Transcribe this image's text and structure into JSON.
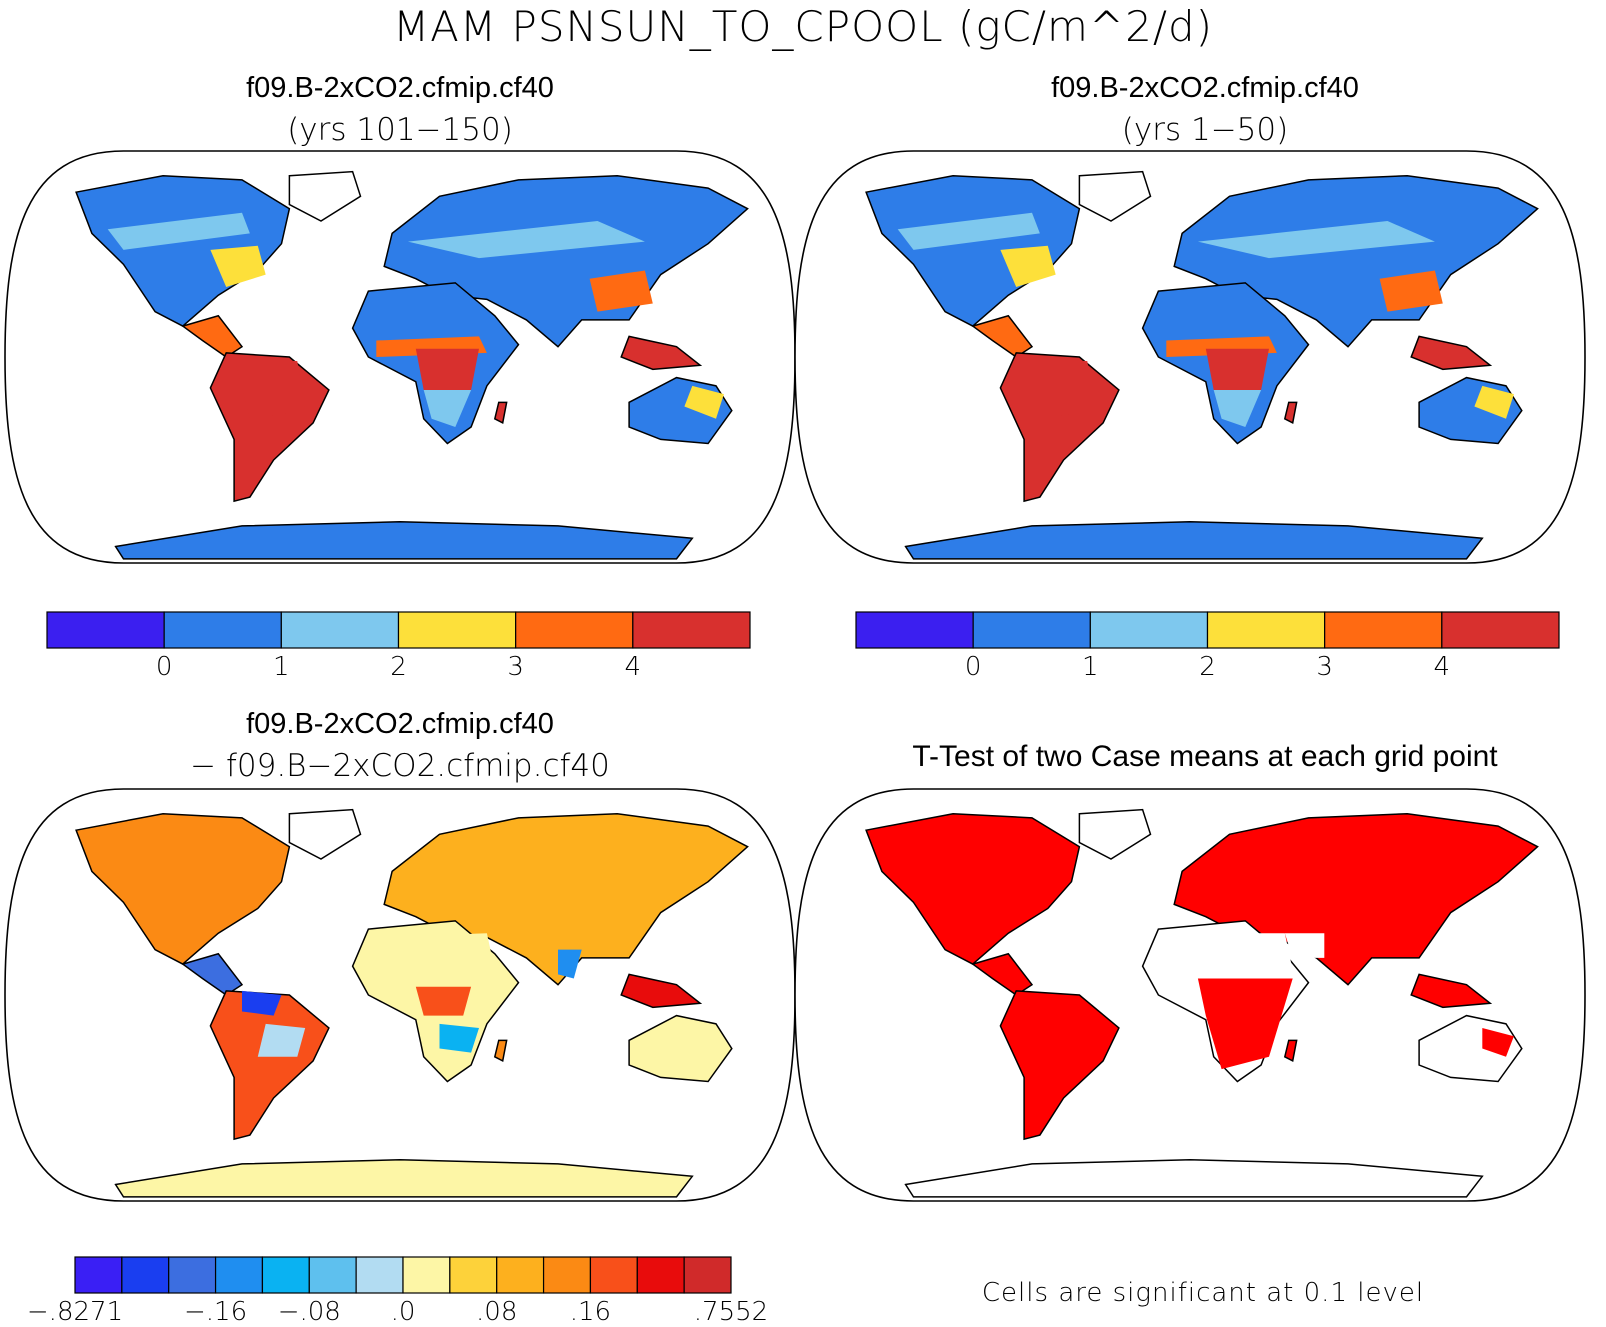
{
  "title": "MAM PSNSUN_TO_CPOOL (gC/m^2/d)",
  "panels": [
    {
      "title": "f09.B-2xCO2.cfmip.cf40",
      "subtitle": "(yrs 101−150)"
    },
    {
      "title": "f09.B-2xCO2.cfmip.cf40",
      "subtitle": "(yrs 1−50)"
    },
    {
      "title": "f09.B-2xCO2.cfmip.cf40",
      "subtitle": "− f09.B−2xCO2.cfmip.cf40"
    },
    {
      "title": "T-Test of two Case means at each grid point",
      "subtitle": ""
    }
  ],
  "colorbar_main": {
    "colors": [
      "#3b1ff0",
      "#2e7de8",
      "#7ec8ee",
      "#fde03a",
      "#ff6a12",
      "#d8302e"
    ],
    "ticks": [
      "0",
      "1",
      "2",
      "3",
      "4"
    ]
  },
  "colorbar_diff": {
    "colors": [
      "#3a1ff5",
      "#1a3ef0",
      "#3c6ee0",
      "#1f8ef0",
      "#0ab2f2",
      "#5ec0ee",
      "#b2dcf2",
      "#fdf6a6",
      "#fdd23a",
      "#fdb01e",
      "#fb8a14",
      "#f8501a",
      "#e80c0c",
      "#d02a2a"
    ],
    "ticks": [
      "−.8271",
      "−.16",
      "−.08",
      ".0",
      ".08",
      ".16",
      ".7552"
    ]
  },
  "significance_note": "Cells are significant at 0.1 level",
  "map_palette": {
    "ocean": "#ffffff",
    "ttest_significant": "#ff0000"
  }
}
